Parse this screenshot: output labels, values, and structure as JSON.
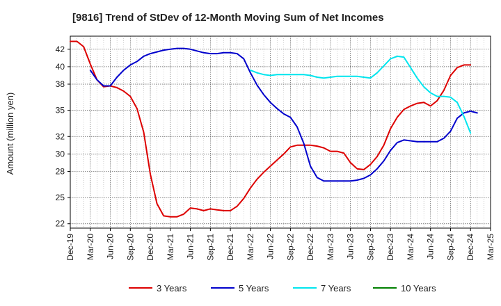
{
  "chart_data": {
    "type": "line",
    "title": "[9816]  Trend of StDev of 12-Month Moving Sum of Net Incomes",
    "ylabel": "Amount (million yen)",
    "xlabel": "",
    "x_ticks": [
      "Dec-19",
      "Mar-20",
      "Jun-20",
      "Sep-20",
      "Dec-20",
      "Mar-21",
      "Jun-21",
      "Sep-21",
      "Dec-21",
      "Mar-22",
      "Jun-22",
      "Sep-22",
      "Dec-22",
      "Mar-23",
      "Jun-23",
      "Sep-23",
      "Dec-23",
      "Mar-24",
      "Jun-24",
      "Sep-24",
      "Dec-24",
      "Mar-25"
    ],
    "y_ticks": [
      22,
      25,
      28,
      30,
      32,
      35,
      38,
      40,
      42
    ],
    "ylim": [
      21.5,
      43.5
    ],
    "grid": true,
    "legend_position": "bottom",
    "series": [
      {
        "name": "3 Years",
        "color": "#dd0000",
        "start_index": 0,
        "values": [
          42.9,
          42.9,
          42.3,
          40.3,
          38.5,
          37.7,
          37.8,
          37.6,
          37.2,
          36.6,
          35.2,
          32.5,
          27.7,
          24.3,
          22.9,
          22.8,
          22.8,
          23.1,
          23.8,
          23.7,
          23.5,
          23.7,
          23.6,
          23.5,
          23.5,
          24.0,
          24.9,
          26.1,
          27.1,
          27.9,
          28.6,
          29.3,
          30.0,
          30.8,
          31.0,
          31.0,
          31.0,
          30.9,
          30.7,
          30.3,
          30.3,
          30.1,
          29.0,
          28.3,
          28.2,
          28.8,
          29.7,
          31.0,
          32.9,
          34.2,
          35.1,
          35.5,
          35.8,
          35.9,
          35.5,
          36.1,
          37.3,
          39.0,
          39.9,
          40.2,
          40.2
        ]
      },
      {
        "name": "5 Years",
        "color": "#0000cc",
        "start_index": 3,
        "values": [
          39.6,
          38.5,
          37.8,
          37.8,
          38.8,
          39.6,
          40.2,
          40.6,
          41.2,
          41.5,
          41.7,
          41.9,
          42.0,
          42.1,
          42.1,
          42.0,
          41.8,
          41.6,
          41.5,
          41.5,
          41.6,
          41.6,
          41.5,
          40.9,
          39.3,
          37.9,
          36.8,
          35.9,
          35.2,
          34.6,
          34.2,
          33.1,
          31.2,
          28.6,
          27.3,
          26.9,
          26.9,
          26.9,
          26.9,
          26.9,
          27.0,
          27.2,
          27.6,
          28.3,
          29.2,
          30.4,
          31.3,
          31.6,
          31.5,
          31.4,
          31.4,
          31.4,
          31.4,
          31.8,
          32.6,
          34.1,
          34.7,
          34.9,
          34.7
        ]
      },
      {
        "name": "7 Years",
        "color": "#00e5ee",
        "start_index": 27,
        "values": [
          39.6,
          39.3,
          39.1,
          39.0,
          39.1,
          39.1,
          39.1,
          39.1,
          39.1,
          39.0,
          38.8,
          38.7,
          38.8,
          38.9,
          38.9,
          38.9,
          38.9,
          38.8,
          38.7,
          39.3,
          40.1,
          40.9,
          41.2,
          41.1,
          39.9,
          38.7,
          37.7,
          37.0,
          36.6,
          36.6,
          36.5,
          35.9,
          34.3,
          32.4
        ]
      },
      {
        "name": "10 Years",
        "color": "#008000",
        "start_index": 0,
        "values": []
      }
    ]
  }
}
